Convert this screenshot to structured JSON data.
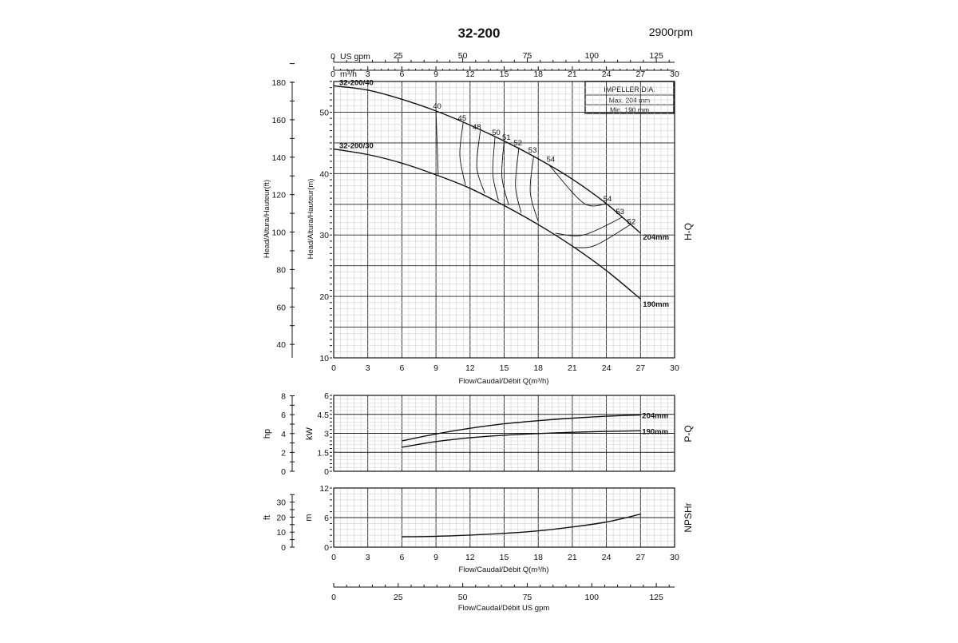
{
  "header": {
    "title": "32-200",
    "speed": "2900rpm"
  },
  "impeller_box": {
    "title": "IMPELLER DIA.",
    "max": "Max.  204 mm",
    "min": "Min.  190 mm"
  },
  "axes": {
    "flow_m3h_ticks": [
      "0",
      "3",
      "6",
      "9",
      "12",
      "15",
      "18",
      "21",
      "24",
      "27",
      "30"
    ],
    "flow_top_prefix": "m³/h",
    "usgpm_ticks": [
      "0",
      "25",
      "50",
      "75",
      "100",
      "125"
    ],
    "usgpm_prefix": "US gpm",
    "head_m_ticks": [
      "10",
      "20",
      "30",
      "40",
      "50"
    ],
    "head_ft_ticks": [
      "40",
      "60",
      "80",
      "100",
      "120",
      "140",
      "160",
      "180"
    ],
    "kw_ticks": [
      "0",
      "1.5",
      "3",
      "4.5",
      "6"
    ],
    "hp_ticks": [
      "0",
      "2",
      "4",
      "6",
      "8"
    ],
    "npsh_m_ticks": [
      "0",
      "6",
      "12"
    ],
    "npsh_ft_ticks": [
      "0",
      "10",
      "20",
      "30"
    ],
    "head_m_label": "Head/Altura/Hauteur(m)",
    "head_ft_label": "Head/Altura/Hauteur(ft)",
    "kw_label": "kW",
    "hp_label": "hp",
    "npsh_m_label": "m",
    "npsh_ft_label": "ft",
    "flow_label_main": "Flow/Caudal/Débit Q(m³/h)",
    "flow_label_npsh": "Flow/Caudal/Débit Q(m³/h)",
    "flow_label_usgpm": "Flow/Caudal/Débit  US gpm",
    "side_hq": "H-Q",
    "side_pq": "P-Q",
    "side_npsh": "NPSHr"
  },
  "chart_data": [
    {
      "type": "line",
      "name": "H-Q",
      "xlabel": "Flow/Caudal/Débit Q(m³/h)",
      "ylabel": "Head/Altura/Hauteur(m)",
      "xlim": [
        0,
        30
      ],
      "ylim": [
        10,
        55
      ],
      "series": [
        {
          "name": "204mm",
          "curve_label": "32-200/40",
          "x": [
            0,
            3,
            6,
            9,
            12,
            15,
            18,
            21,
            24,
            27
          ],
          "y": [
            54.3,
            53.6,
            52.1,
            50.2,
            47.9,
            45.3,
            42.4,
            39.1,
            35.1,
            30.3
          ]
        },
        {
          "name": "190mm",
          "curve_label": "32-200/30",
          "x": [
            0,
            3,
            6,
            9,
            12,
            15,
            18,
            21,
            24,
            27
          ],
          "y": [
            44.0,
            43.1,
            41.7,
            39.8,
            37.6,
            34.8,
            31.7,
            28.2,
            24.2,
            19.6
          ]
        }
      ],
      "efficiency_labels": [
        "40",
        "45",
        "48",
        "50",
        "51",
        "52",
        "53",
        "54",
        "54",
        "53",
        "52"
      ],
      "efficiency_curves": [
        {
          "label": "40",
          "x": [
            9.0,
            9.2
          ],
          "y": [
            50.2,
            39.8
          ]
        },
        {
          "label": "45",
          "x": [
            11.4,
            11.1,
            11.6
          ],
          "y": [
            48.4,
            43.0,
            38.1
          ]
        },
        {
          "label": "48",
          "x": [
            12.9,
            12.6,
            13.3
          ],
          "y": [
            47.0,
            41.0,
            36.8
          ]
        },
        {
          "label": "50",
          "x": [
            14.2,
            14.0,
            14.5
          ],
          "y": [
            46.0,
            40.0,
            35.6
          ]
        },
        {
          "label": "51",
          "x": [
            15.0,
            14.8,
            15.4
          ],
          "y": [
            45.3,
            39.5,
            34.9
          ]
        },
        {
          "label": "52",
          "x": [
            16.3,
            16.0,
            16.5
          ],
          "y": [
            44.3,
            38.0,
            33.6
          ]
        },
        {
          "label": "53",
          "x": [
            17.6,
            17.3,
            18.0
          ],
          "y": [
            42.9,
            37.0,
            32.2
          ]
        },
        {
          "label": "54",
          "x": [
            19.0,
            22.0,
            24.0
          ],
          "y": [
            41.3,
            35.2,
            35.1
          ]
        },
        {
          "label": "53",
          "x": [
            19.5,
            22.0,
            25.4
          ],
          "y": [
            30.3,
            30.0,
            32.9
          ]
        },
        {
          "label": "52",
          "x": [
            21.0,
            23.0,
            26.2
          ],
          "y": [
            28.0,
            28.3,
            31.8
          ]
        }
      ]
    },
    {
      "type": "line",
      "name": "P-Q",
      "ylabel": "kW",
      "xlim": [
        0,
        30
      ],
      "ylim": [
        0,
        6
      ],
      "series": [
        {
          "name": "204mm",
          "x": [
            6,
            9,
            12,
            15,
            18,
            21,
            24,
            27
          ],
          "y": [
            2.4,
            2.95,
            3.4,
            3.75,
            4.0,
            4.2,
            4.35,
            4.45
          ]
        },
        {
          "name": "190mm",
          "x": [
            6,
            9,
            12,
            15,
            18,
            21,
            24,
            27
          ],
          "y": [
            1.9,
            2.35,
            2.65,
            2.85,
            2.98,
            3.08,
            3.15,
            3.2
          ]
        }
      ]
    },
    {
      "type": "line",
      "name": "NPSHr",
      "ylabel": "m",
      "xlim": [
        0,
        30
      ],
      "ylim": [
        0,
        12
      ],
      "series": [
        {
          "name": "NPSHr",
          "x": [
            6,
            9,
            12,
            15,
            18,
            21,
            24,
            27
          ],
          "y": [
            2.1,
            2.2,
            2.45,
            2.8,
            3.3,
            4.1,
            5.1,
            6.7
          ]
        }
      ]
    }
  ]
}
